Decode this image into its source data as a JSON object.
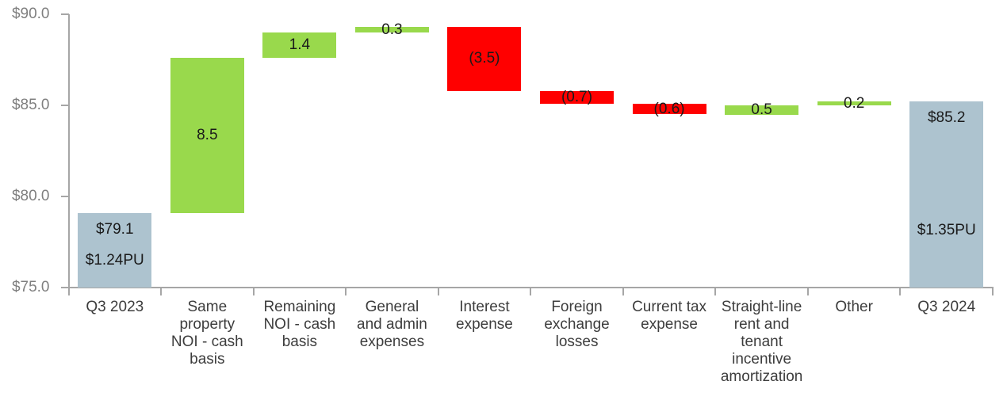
{
  "chart_data": {
    "type": "bar",
    "subtype": "waterfall",
    "title": "",
    "xlabel": "",
    "ylabel": "",
    "ylim": [
      75,
      90
    ],
    "grid": false,
    "legend": "none",
    "categories": [
      "Q3 2023",
      "Same property NOI - cash basis",
      "Remaining NOI - cash basis",
      "General and admin expenses",
      "Interest expense",
      "Foreign exchange losses",
      "Current tax expense",
      "Straight-line rent and tenant incentive amortization",
      "Other",
      "Q3 2024"
    ],
    "y_axis": {
      "min": 75,
      "max": 90,
      "tick_step": 5,
      "ticks": [
        {
          "label": "$90.0",
          "value": 90
        },
        {
          "label": "$85.0",
          "value": 85
        },
        {
          "label": "$80.0",
          "value": 80
        },
        {
          "label": "$75.0",
          "value": 75
        }
      ]
    },
    "bars": [
      {
        "category": "Q3 2023",
        "category_label": "Q3 2023",
        "kind": "total",
        "start": 75.0,
        "end": 79.1,
        "value": 79.1,
        "labels": [
          "$79.1",
          "$1.24PU"
        ]
      },
      {
        "category": "Same property NOI - cash basis",
        "category_label": "Same\nproperty\nNOI - cash\nbasis",
        "kind": "increase",
        "start": 79.1,
        "end": 87.6,
        "value": 8.5,
        "labels": [
          "8.5"
        ]
      },
      {
        "category": "Remaining NOI - cash basis",
        "category_label": "Remaining\nNOI - cash\nbasis",
        "kind": "increase",
        "start": 87.6,
        "end": 89.0,
        "value": 1.4,
        "labels": [
          "1.4"
        ]
      },
      {
        "category": "General and admin expenses",
        "category_label": "General\nand admin\nexpenses",
        "kind": "increase",
        "start": 89.0,
        "end": 89.3,
        "value": 0.3,
        "labels": [
          "0.3"
        ]
      },
      {
        "category": "Interest expense",
        "category_label": "Interest\nexpense",
        "kind": "decrease",
        "start": 89.3,
        "end": 85.8,
        "value": -3.5,
        "labels": [
          "(3.5)"
        ]
      },
      {
        "category": "Foreign exchange losses",
        "category_label": "Foreign\nexchange\nlosses",
        "kind": "decrease",
        "start": 85.8,
        "end": 85.1,
        "value": -0.7,
        "labels": [
          "(0.7)"
        ]
      },
      {
        "category": "Current tax expense",
        "category_label": "Current tax\nexpense",
        "kind": "decrease",
        "start": 85.1,
        "end": 84.5,
        "value": -0.6,
        "labels": [
          "(0.6)"
        ]
      },
      {
        "category": "Straight-line rent and tenant incentive amortization",
        "category_label": "Straight-line\nrent and\ntenant\nincentive\namortization",
        "kind": "increase",
        "start": 84.5,
        "end": 85.0,
        "value": 0.5,
        "labels": [
          "0.5"
        ]
      },
      {
        "category": "Other",
        "category_label": "Other",
        "kind": "increase",
        "start": 85.0,
        "end": 85.2,
        "value": 0.2,
        "labels": [
          "0.2"
        ]
      },
      {
        "category": "Q3 2024",
        "category_label": "Q3 2024",
        "kind": "total",
        "start": 75.0,
        "end": 85.2,
        "value": 85.2,
        "labels": [
          "$85.2",
          "$1.35PU"
        ]
      }
    ],
    "colors": {
      "total": "#adc3cf",
      "increase": "#99d94c",
      "decrease": "#ff0000",
      "axis": "#a6a6a6",
      "tick_label": "#7f7f7f",
      "category_label": "#3d3d3d",
      "bar_label": "#1a1a1a"
    }
  }
}
